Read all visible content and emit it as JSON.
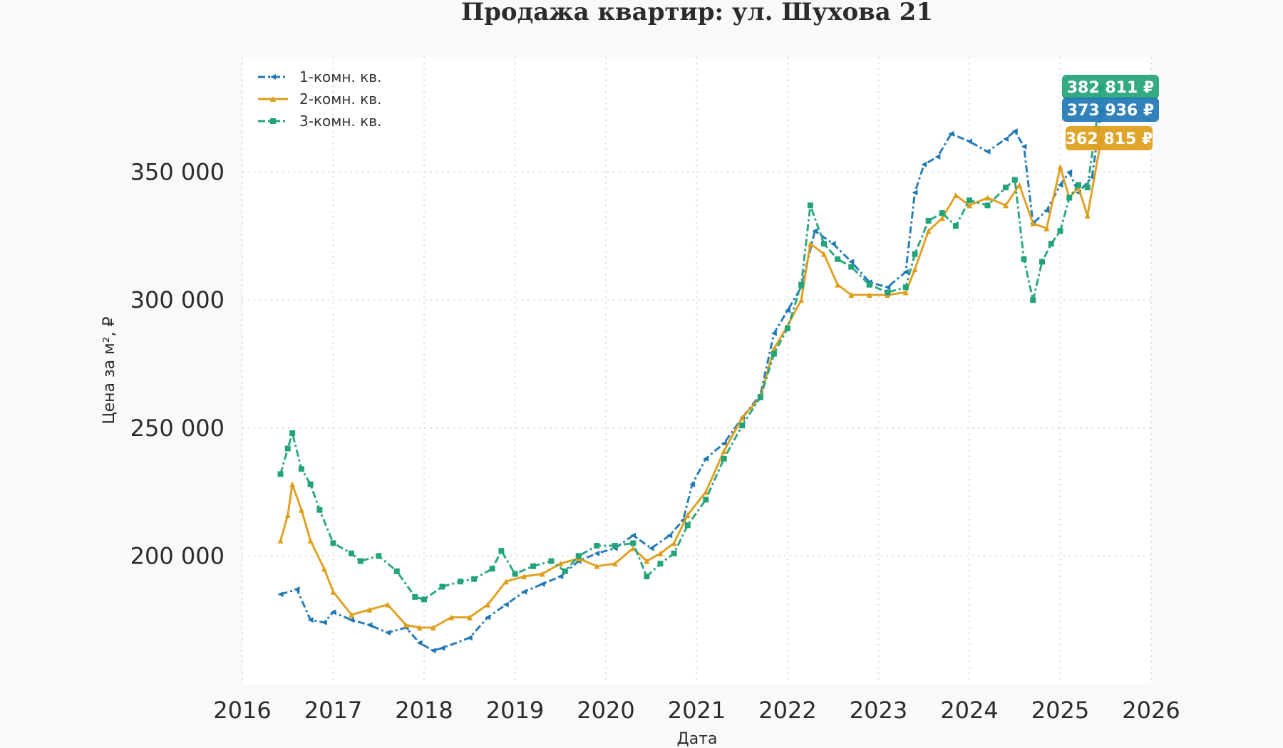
{
  "chart_data": {
    "type": "line",
    "title": "Продажа квартир: ул. Шухова 21",
    "xlabel": "Дата",
    "ylabel": "Цена за м², ₽",
    "xlim": [
      2016,
      2026
    ],
    "ylim": [
      150000,
      395000
    ],
    "x_ticks": [
      2016,
      2017,
      2018,
      2019,
      2020,
      2021,
      2022,
      2023,
      2024,
      2025,
      2026
    ],
    "x_tick_labels": [
      "2016",
      "2017",
      "2018",
      "2019",
      "2020",
      "2021",
      "2022",
      "2023",
      "2024",
      "2025",
      "2026"
    ],
    "y_ticks": [
      200000,
      250000,
      300000,
      350000
    ],
    "y_tick_labels": [
      "200 000",
      "250 000",
      "300 000",
      "350 000"
    ],
    "grid": true,
    "legend_position": "top-left",
    "series": [
      {
        "name": "1-комн. кв.",
        "color": "#1f77b4",
        "marker": "triangle-left",
        "line_style": "dash-dot",
        "end_label": "373 936 ₽",
        "x": [
          2016.42,
          2016.6,
          2016.75,
          2016.9,
          2017.0,
          2017.2,
          2017.4,
          2017.6,
          2017.8,
          2017.95,
          2018.1,
          2018.2,
          2018.5,
          2018.7,
          2018.9,
          2019.1,
          2019.3,
          2019.5,
          2019.7,
          2019.9,
          2020.1,
          2020.3,
          2020.5,
          2020.7,
          2020.85,
          2020.95,
          2021.1,
          2021.3,
          2021.5,
          2021.7,
          2021.85,
          2022.0,
          2022.15,
          2022.3,
          2022.5,
          2022.7,
          2022.9,
          2023.1,
          2023.3,
          2023.4,
          2023.5,
          2023.65,
          2023.8,
          2024.0,
          2024.2,
          2024.4,
          2024.5,
          2024.6,
          2024.7,
          2024.85,
          2025.0,
          2025.1,
          2025.2,
          2025.35,
          2025.45
        ],
        "y": [
          185000,
          187000,
          175000,
          174000,
          178000,
          175000,
          173000,
          170000,
          172000,
          166000,
          163000,
          164000,
          168000,
          176000,
          181000,
          186000,
          189000,
          192000,
          198000,
          201000,
          203000,
          208000,
          203000,
          208000,
          214000,
          228000,
          238000,
          244000,
          254000,
          263000,
          287000,
          296000,
          305000,
          327000,
          322000,
          315000,
          307000,
          305000,
          311000,
          342000,
          353000,
          356000,
          365000,
          362000,
          358000,
          363000,
          366000,
          360000,
          330000,
          335000,
          345000,
          350000,
          342000,
          348000,
          373936
        ]
      },
      {
        "name": "2-комн. кв.",
        "color": "#de9d19",
        "marker": "triangle-up",
        "line_style": "solid",
        "end_label": "362 815 ₽",
        "x": [
          2016.42,
          2016.5,
          2016.55,
          2016.65,
          2016.75,
          2016.9,
          2017.0,
          2017.2,
          2017.4,
          2017.6,
          2017.8,
          2017.95,
          2018.1,
          2018.3,
          2018.5,
          2018.7,
          2018.9,
          2019.1,
          2019.3,
          2019.5,
          2019.7,
          2019.9,
          2020.1,
          2020.3,
          2020.45,
          2020.6,
          2020.75,
          2020.9,
          2021.1,
          2021.3,
          2021.5,
          2021.7,
          2021.85,
          2022.0,
          2022.15,
          2022.25,
          2022.4,
          2022.55,
          2022.7,
          2022.9,
          2023.1,
          2023.3,
          2023.4,
          2023.55,
          2023.7,
          2023.85,
          2024.0,
          2024.2,
          2024.4,
          2024.55,
          2024.7,
          2024.85,
          2025.0,
          2025.1,
          2025.2,
          2025.3,
          2025.45
        ],
        "y": [
          206000,
          216000,
          228000,
          218000,
          206000,
          195000,
          186000,
          177000,
          179000,
          181000,
          173000,
          172000,
          172000,
          176000,
          176000,
          181000,
          190000,
          192000,
          193000,
          197000,
          199000,
          196000,
          197000,
          203000,
          198000,
          201000,
          205000,
          216000,
          225000,
          241000,
          254000,
          262000,
          281000,
          290000,
          300000,
          322000,
          318000,
          306000,
          302000,
          302000,
          302000,
          303000,
          312000,
          327000,
          332000,
          341000,
          337000,
          340000,
          337000,
          345000,
          330000,
          328000,
          352000,
          340000,
          344000,
          333000,
          362815
        ]
      },
      {
        "name": "3-комн. кв.",
        "color": "#23a37a",
        "marker": "square",
        "line_style": "dash-dot",
        "end_label": "382 811 ₽",
        "x": [
          2016.42,
          2016.5,
          2016.55,
          2016.65,
          2016.75,
          2016.85,
          2017.0,
          2017.2,
          2017.3,
          2017.5,
          2017.7,
          2017.9,
          2018.0,
          2018.2,
          2018.4,
          2018.55,
          2018.75,
          2018.85,
          2019.0,
          2019.2,
          2019.4,
          2019.55,
          2019.7,
          2019.9,
          2020.1,
          2020.3,
          2020.45,
          2020.6,
          2020.75,
          2020.9,
          2021.1,
          2021.3,
          2021.5,
          2021.7,
          2021.85,
          2022.0,
          2022.15,
          2022.25,
          2022.4,
          2022.55,
          2022.7,
          2022.9,
          2023.1,
          2023.3,
          2023.4,
          2023.55,
          2023.7,
          2023.85,
          2024.0,
          2024.2,
          2024.4,
          2024.5,
          2024.6,
          2024.7,
          2024.8,
          2024.9,
          2025.0,
          2025.1,
          2025.2,
          2025.3,
          2025.45
        ],
        "y": [
          232000,
          242000,
          248000,
          234000,
          228000,
          218000,
          205000,
          201000,
          198000,
          200000,
          194000,
          184000,
          183000,
          188000,
          190000,
          191000,
          195000,
          202000,
          193000,
          196000,
          198000,
          194000,
          200000,
          204000,
          204000,
          205000,
          192000,
          197000,
          201000,
          212000,
          222000,
          238000,
          251000,
          262000,
          279000,
          289000,
          306000,
          337000,
          322000,
          316000,
          313000,
          306000,
          303000,
          305000,
          318000,
          331000,
          334000,
          329000,
          339000,
          337000,
          344000,
          347000,
          316000,
          300000,
          315000,
          322000,
          327000,
          340000,
          345000,
          344000,
          382811
        ]
      }
    ]
  }
}
